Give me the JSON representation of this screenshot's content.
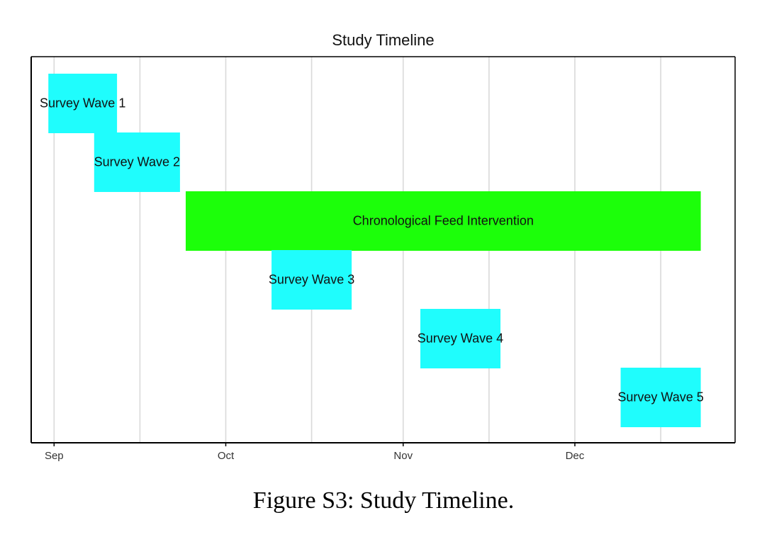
{
  "caption": "Figure S3: Study Timeline.",
  "colors": {
    "survey": "#1ffdfd",
    "intervention": "#1cff0a",
    "grid": "#d9d9d9",
    "axis": "#000000",
    "text": "#111111"
  },
  "chart_data": {
    "type": "gantt",
    "title": "Study Timeline",
    "xlabel": "",
    "ylabel": "",
    "x_axis": "date",
    "xlim": [
      "2022-08-28",
      "2022-12-29"
    ],
    "major_ticks": [
      "2022-09-01",
      "2022-10-01",
      "2022-11-01",
      "2022-12-01"
    ],
    "tick_labels": [
      "Sep",
      "Oct",
      "Nov",
      "Dec"
    ],
    "minor_gridlines": [
      "2022-09-16",
      "2022-10-16",
      "2022-11-16",
      "2022-12-16"
    ],
    "grid": true,
    "legend": "none",
    "tasks": [
      {
        "label": "Survey Wave 1",
        "start": "2022-08-31",
        "end": "2022-09-12",
        "kind": "survey"
      },
      {
        "label": "Survey Wave 2",
        "start": "2022-09-08",
        "end": "2022-09-23",
        "kind": "survey"
      },
      {
        "label": "Chronological Feed Intervention",
        "start": "2022-09-24",
        "end": "2022-12-23",
        "kind": "intervention"
      },
      {
        "label": "Survey Wave 3",
        "start": "2022-10-09",
        "end": "2022-10-23",
        "kind": "survey"
      },
      {
        "label": "Survey Wave 4",
        "start": "2022-11-04",
        "end": "2022-11-18",
        "kind": "survey"
      },
      {
        "label": "Survey Wave 5",
        "start": "2022-12-09",
        "end": "2022-12-23",
        "kind": "survey"
      }
    ]
  }
}
